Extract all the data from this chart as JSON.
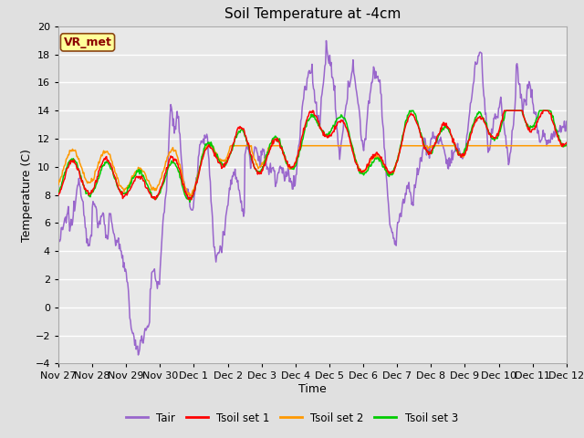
{
  "title": "Soil Temperature at -4cm",
  "xlabel": "Time",
  "ylabel": "Temperature (C)",
  "ylim": [
    -4,
    20
  ],
  "yticks": [
    -4,
    -2,
    0,
    2,
    4,
    6,
    8,
    10,
    12,
    14,
    16,
    18,
    20
  ],
  "background_color": "#e0e0e0",
  "plot_bg_color": "#e8e8e8",
  "grid_color": "#ffffff",
  "annotation_text": "VR_met",
  "annotation_bg": "#ffff99",
  "annotation_border": "#8B4513",
  "annotation_text_color": "#8B0000",
  "legend_items": [
    "Tair",
    "Tsoil set 1",
    "Tsoil set 2",
    "Tsoil set 3"
  ],
  "legend_colors": [
    "#9966cc",
    "#ff0000",
    "#ff9900",
    "#00cc00"
  ],
  "line_colors": [
    "#9966cc",
    "#ff0000",
    "#ff9900",
    "#00cc00"
  ],
  "x_tick_labels": [
    "Nov 27",
    "Nov 28",
    "Nov 29",
    "Nov 30",
    "Dec 1",
    "Dec 2",
    "Dec 3",
    "Dec 4",
    "Dec 5",
    "Dec 6",
    "Dec 7",
    "Dec 8",
    "Dec 9",
    "Dec 10",
    "Dec 11",
    "Dec 12"
  ],
  "title_fontsize": 11,
  "axis_fontsize": 9,
  "tick_fontsize": 8
}
